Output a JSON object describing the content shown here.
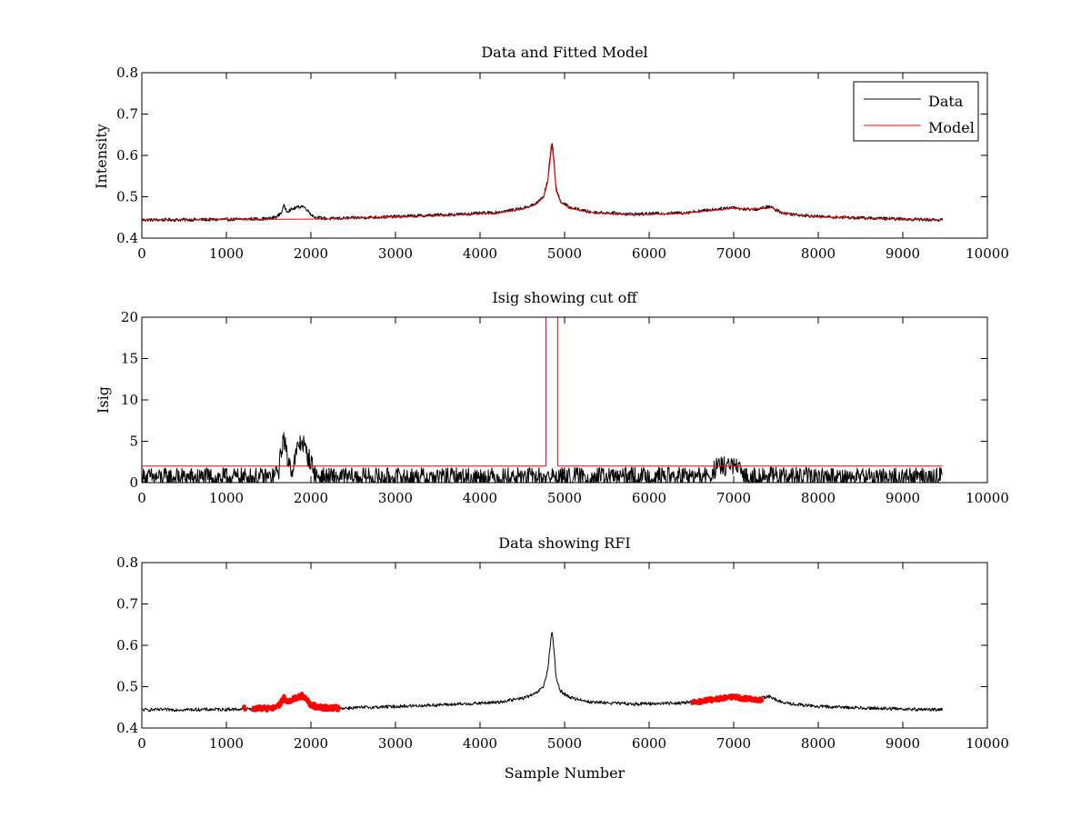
{
  "chart_data": [
    {
      "type": "line",
      "title": "Data and Fitted Model",
      "xlabel": "",
      "ylabel": "Intensity",
      "xlim": [
        0,
        10000
      ],
      "ylim": [
        0.4,
        0.8
      ],
      "xticks": [
        0,
        1000,
        2000,
        3000,
        4000,
        5000,
        6000,
        7000,
        8000,
        9000,
        10000
      ],
      "xtick_labels": [
        "0",
        "1000",
        "2000",
        "3000",
        "4000",
        "5000",
        "6000",
        "7000",
        "8000",
        "9000",
        "10000"
      ],
      "yticks": [
        0.4,
        0.5,
        0.6,
        0.7,
        0.8
      ],
      "ytick_labels": [
        "0.4",
        "0.5",
        "0.6",
        "0.7",
        "0.8"
      ],
      "grid": false,
      "legend": "top-right",
      "series": [
        {
          "name": "Data",
          "color": "#000000",
          "noise": 0.004,
          "x": [
            0,
            1000,
            1500,
            1600,
            1650,
            1680,
            1720,
            1800,
            1900,
            1950,
            2000,
            2050,
            2200,
            3000,
            3800,
            4200,
            4500,
            4650,
            4750,
            4800,
            4830,
            4850,
            4870,
            4900,
            4950,
            5050,
            5300,
            5800,
            6400,
            6800,
            7000,
            7100,
            7300,
            7400,
            7450,
            7500,
            7600,
            8000,
            9000,
            9470
          ],
          "y": [
            0.444,
            0.445,
            0.447,
            0.452,
            0.462,
            0.478,
            0.465,
            0.472,
            0.478,
            0.47,
            0.458,
            0.45,
            0.447,
            0.452,
            0.458,
            0.462,
            0.472,
            0.482,
            0.5,
            0.54,
            0.6,
            0.632,
            0.6,
            0.52,
            0.49,
            0.475,
            0.463,
            0.458,
            0.461,
            0.47,
            0.475,
            0.47,
            0.47,
            0.476,
            0.475,
            0.468,
            0.46,
            0.452,
            0.446,
            0.444
          ]
        },
        {
          "name": "Model",
          "color": "#ff0000",
          "noise": 0,
          "x": [
            0,
            1000,
            2000,
            3000,
            3800,
            4200,
            4500,
            4650,
            4750,
            4800,
            4830,
            4850,
            4870,
            4900,
            4950,
            5050,
            5300,
            5800,
            6400,
            6800,
            7000,
            7200,
            7400,
            7450,
            7500,
            7600,
            8000,
            9000,
            9470
          ],
          "y": [
            0.444,
            0.445,
            0.446,
            0.451,
            0.457,
            0.461,
            0.47,
            0.48,
            0.498,
            0.535,
            0.59,
            0.625,
            0.59,
            0.515,
            0.488,
            0.473,
            0.462,
            0.456,
            0.46,
            0.468,
            0.472,
            0.47,
            0.472,
            0.474,
            0.468,
            0.46,
            0.451,
            0.446,
            0.444
          ]
        }
      ]
    },
    {
      "type": "line",
      "title": "Isig showing cut off",
      "xlabel": "",
      "ylabel": "Isig",
      "xlim": [
        0,
        10000
      ],
      "ylim": [
        0,
        20
      ],
      "xticks": [
        0,
        1000,
        2000,
        3000,
        4000,
        5000,
        6000,
        7000,
        8000,
        9000,
        10000
      ],
      "xtick_labels": [
        "0",
        "1000",
        "2000",
        "3000",
        "4000",
        "5000",
        "6000",
        "7000",
        "8000",
        "9000",
        "10000"
      ],
      "yticks": [
        0,
        5,
        10,
        15,
        20
      ],
      "ytick_labels": [
        "0",
        "5",
        "10",
        "15",
        "20"
      ],
      "grid": false,
      "series": [
        {
          "color": "#000000",
          "noise": 1.2,
          "x": [
            0,
            1550,
            1620,
            1650,
            1680,
            1720,
            1780,
            1850,
            1900,
            1950,
            2000,
            2050,
            2100,
            6700,
            6800,
            6900,
            7000,
            7050,
            7150,
            9470
          ],
          "y": [
            0.6,
            0.6,
            1.5,
            4,
            5.5,
            3,
            1.5,
            4.5,
            5,
            3.5,
            2.5,
            1,
            0.6,
            0.7,
            1.8,
            2,
            2,
            1.5,
            0.7,
            0.6
          ]
        },
        {
          "color": "#ff0000",
          "noise": 0,
          "x": [
            0,
            4780,
            4780,
            4920,
            4920,
            9470
          ],
          "y": [
            2,
            2,
            20,
            20,
            2,
            2
          ]
        }
      ]
    },
    {
      "type": "line",
      "title": "Data showing RFI",
      "xlabel": "Sample Number",
      "ylabel": "",
      "xlim": [
        0,
        10000
      ],
      "ylim": [
        0.4,
        0.8
      ],
      "xticks": [
        0,
        1000,
        2000,
        3000,
        4000,
        5000,
        6000,
        7000,
        8000,
        9000,
        10000
      ],
      "xtick_labels": [
        "0",
        "1000",
        "2000",
        "3000",
        "4000",
        "5000",
        "6000",
        "7000",
        "8000",
        "9000",
        "10000"
      ],
      "yticks": [
        0.4,
        0.5,
        0.6,
        0.7,
        0.8
      ],
      "ytick_labels": [
        "0.4",
        "0.5",
        "0.6",
        "0.7",
        "0.8"
      ],
      "grid": false,
      "series": [
        {
          "color": "#000000",
          "noise": 0.004,
          "x": [
            0,
            1000,
            1500,
            1600,
            1650,
            1680,
            1720,
            1800,
            1900,
            1950,
            2000,
            2050,
            2200,
            3000,
            3800,
            4200,
            4500,
            4650,
            4750,
            4800,
            4830,
            4850,
            4870,
            4900,
            4950,
            5050,
            5300,
            5800,
            6400,
            6800,
            7000,
            7100,
            7300,
            7400,
            7450,
            7500,
            7600,
            8000,
            9000,
            9470
          ],
          "y": [
            0.444,
            0.445,
            0.447,
            0.452,
            0.462,
            0.478,
            0.465,
            0.472,
            0.478,
            0.47,
            0.458,
            0.45,
            0.447,
            0.452,
            0.458,
            0.462,
            0.472,
            0.482,
            0.5,
            0.54,
            0.6,
            0.632,
            0.6,
            0.52,
            0.49,
            0.475,
            0.463,
            0.458,
            0.461,
            0.47,
            0.475,
            0.47,
            0.47,
            0.476,
            0.475,
            0.468,
            0.46,
            0.452,
            0.446,
            0.444
          ]
        }
      ],
      "highlights": [
        {
          "color": "#ff0000",
          "noise": 0.006,
          "x": [
            1200,
            1230
          ],
          "y": [
            0.449,
            0.447
          ]
        },
        {
          "color": "#ff0000",
          "noise": 0.006,
          "x": [
            1300,
            1500,
            1600,
            1650,
            1680,
            1720,
            1800,
            1900,
            1950,
            2000,
            2100,
            2340
          ],
          "y": [
            0.448,
            0.447,
            0.452,
            0.462,
            0.474,
            0.462,
            0.472,
            0.478,
            0.468,
            0.456,
            0.45,
            0.448
          ]
        },
        {
          "color": "#ff0000",
          "noise": 0.005,
          "x": [
            6500,
            6800,
            7000,
            7100,
            7340
          ],
          "y": [
            0.461,
            0.47,
            0.476,
            0.472,
            0.468
          ]
        }
      ]
    }
  ]
}
